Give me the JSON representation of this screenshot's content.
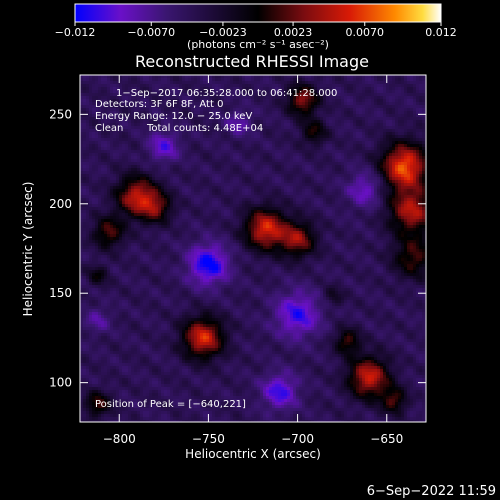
{
  "chart_data": {
    "type": "heatmap",
    "title": "Reconstructed RHESSI Image",
    "xlabel": "Heliocentric X (arcsec)",
    "ylabel": "Heliocentric Y (arcsec)",
    "xlim": [
      -822,
      -628
    ],
    "ylim": [
      78,
      272
    ],
    "x_ticks": [
      -800,
      -750,
      -700,
      -650
    ],
    "x_tick_labels": [
      "−800",
      "−750",
      "−700",
      "−650"
    ],
    "y_ticks": [
      100,
      150,
      200,
      250
    ],
    "y_tick_labels": [
      "100",
      "150",
      "200",
      "250"
    ],
    "colorbar": {
      "range": [
        -0.012,
        0.012
      ],
      "ticks": [
        -0.012,
        -0.007,
        -0.0023,
        0.0023,
        0.007,
        0.012
      ],
      "tick_labels": [
        "−0.012",
        "−0.0070",
        "−0.0023",
        "0.0023",
        "0.0070",
        "0.012"
      ],
      "unit_label": "(photons cm⁻² s⁻¹ asec⁻²)",
      "colors": [
        "#0000ff",
        "#6a10c8",
        "#3a1670",
        "#000000",
        "#7a0c10",
        "#d81a06",
        "#ff8a00",
        "#ffdc40",
        "#ffffff"
      ]
    },
    "annotations": [
      "1−Sep−2017 06:35:28.000 to 06:41:28.000",
      "Detectors: 3F 6F 8F, Att 0",
      "Energy Range: 12.0 − 25.0 keV",
      "Clean",
      "Total counts: 4.48E+04"
    ],
    "peak_label": "Position of Peak = [−640,221]",
    "peak": {
      "x": -640,
      "y": 221
    },
    "sources": [
      {
        "x": -640,
        "y": 221,
        "sigma": 9,
        "amp": 0.012
      },
      {
        "x": -636,
        "y": 196,
        "sigma": 9,
        "amp": 0.009
      },
      {
        "x": -635,
        "y": 170,
        "sigma": 8,
        "amp": 0.006
      },
      {
        "x": -718,
        "y": 186,
        "sigma": 8,
        "amp": 0.0105
      },
      {
        "x": -700,
        "y": 180,
        "sigma": 7,
        "amp": 0.008
      },
      {
        "x": -790,
        "y": 204,
        "sigma": 8,
        "amp": 0.0095
      },
      {
        "x": -779,
        "y": 198,
        "sigma": 6,
        "amp": 0.006
      },
      {
        "x": -806,
        "y": 184,
        "sigma": 6,
        "amp": 0.0065
      },
      {
        "x": -753,
        "y": 125,
        "sigma": 8,
        "amp": 0.0105
      },
      {
        "x": -660,
        "y": 103,
        "sigma": 8,
        "amp": 0.01
      },
      {
        "x": -672,
        "y": 123,
        "sigma": 5,
        "amp": 0.006
      },
      {
        "x": -646,
        "y": 90,
        "sigma": 5,
        "amp": 0.006
      },
      {
        "x": -697,
        "y": 258,
        "sigma": 6,
        "amp": 0.008
      },
      {
        "x": -691,
        "y": 240,
        "sigma": 5,
        "amp": 0.005
      },
      {
        "x": -812,
        "y": 88,
        "sigma": 5,
        "amp": 0.006
      },
      {
        "x": -812,
        "y": 160,
        "sigma": 4,
        "amp": 0.004
      },
      {
        "x": -680,
        "y": 148,
        "sigma": 4,
        "amp": 0.003
      },
      {
        "x": -733,
        "y": 245,
        "sigma": 5,
        "amp": -0.0035
      },
      {
        "x": -700,
        "y": 138,
        "sigma": 9,
        "amp": -0.006
      },
      {
        "x": -750,
        "y": 166,
        "sigma": 8,
        "amp": -0.0075
      },
      {
        "x": -775,
        "y": 232,
        "sigma": 6,
        "amp": -0.005
      },
      {
        "x": -662,
        "y": 208,
        "sigma": 7,
        "amp": -0.0045
      },
      {
        "x": -710,
        "y": 95,
        "sigma": 7,
        "amp": -0.006
      },
      {
        "x": -812,
        "y": 135,
        "sigma": 5,
        "amp": -0.003
      }
    ]
  },
  "footer_timestamp": "6−Sep−2022 11:59"
}
